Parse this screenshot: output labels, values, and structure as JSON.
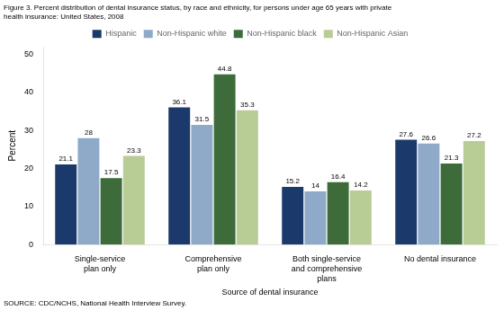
{
  "chart_data": {
    "type": "bar",
    "title": [
      "Figure 3. Percent distribution of dental insurance status, by race and ethnicity, for persons under age 65 years with private",
      "health insurance: United States, 2008"
    ],
    "categories": [
      "Single-service\nplan only",
      "Comprehensive\nplan only",
      "Both single-service\nand comprehensive\nplans",
      "No dental insurance"
    ],
    "x_label": "Source of dental insurance",
    "y_label": "Percent",
    "annotations": [
      "SOURCE: CDC/NCHS, National Health Interview Survey."
    ],
    "series": [
      {
        "name": "Hispanic",
        "color": "#1b3a6b",
        "values": [
          21.1,
          36.1,
          15.2,
          27.6
        ]
      },
      {
        "name": "Non-Hispanic white",
        "color": "#8eaac8",
        "values": [
          28.0,
          31.5,
          14.0,
          26.6
        ]
      },
      {
        "name": "Non-Hispanic black",
        "color": "#3d6b3a",
        "values": [
          17.5,
          44.8,
          16.4,
          21.3
        ]
      },
      {
        "name": "Non-Hispanic Asian",
        "color": "#b8cc96",
        "values": [
          23.3,
          35.3,
          14.2,
          27.2
        ]
      }
    ],
    "ylim": [
      0,
      52
    ],
    "yticks": [
      0,
      10,
      20,
      30,
      40,
      50
    ],
    "grid": false,
    "legend": "top",
    "data_labels": true
  }
}
